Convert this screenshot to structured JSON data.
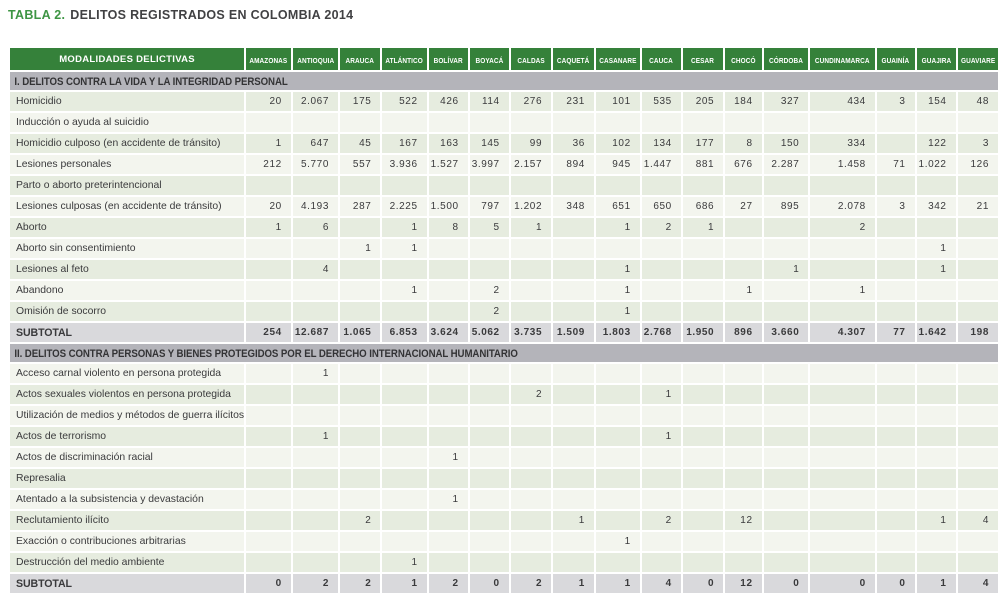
{
  "title": {
    "prefix": "TABLA 2.",
    "text": "DELITOS REGISTRADOS EN COLOMBIA 2014"
  },
  "colors": {
    "header_green": "#35813a",
    "title_green": "#3e9544",
    "section_bar_gray": "#b4b4ba",
    "row_stripe_green": "#e6ecdf",
    "row_stripe_light": "#f3f5ee",
    "subtotal_gray": "#d9d9dc",
    "text": "#3a3a3c"
  },
  "table": {
    "first_header": "MODALIDADES DELICTIVAS",
    "departments": [
      "AMAZONAS",
      "ANTIOQUIA",
      "ARAUCA",
      "ATLÁNTICO",
      "BOLÍVAR",
      "BOYACÁ",
      "CALDAS",
      "CAQUETÁ",
      "CASANARE",
      "CAUCA",
      "CESAR",
      "CHOCÓ",
      "CÓRDOBA",
      "CUNDINAMARCA",
      "GUAINÍA",
      "GUAJIRA",
      "GUAVIARE"
    ],
    "sections": [
      {
        "header": "I. DELITOS CONTRA LA VIDA Y LA INTEGRIDAD PERSONAL",
        "rows": [
          {
            "label": "Homicidio",
            "values": [
              "20",
              "2.067",
              "175",
              "522",
              "426",
              "114",
              "276",
              "231",
              "101",
              "535",
              "205",
              "184",
              "327",
              "434",
              "3",
              "154",
              "48"
            ]
          },
          {
            "label": "Inducción o ayuda al suicidio",
            "values": [
              "",
              "",
              "",
              "",
              "",
              "",
              "",
              "",
              "",
              "",
              "",
              "",
              "",
              "",
              "",
              "",
              ""
            ]
          },
          {
            "label": "Homicidio culposo (en accidente de tránsito)",
            "values": [
              "1",
              "647",
              "45",
              "167",
              "163",
              "145",
              "99",
              "36",
              "102",
              "134",
              "177",
              "8",
              "150",
              "334",
              "",
              "122",
              "3"
            ]
          },
          {
            "label": "Lesiones personales",
            "values": [
              "212",
              "5.770",
              "557",
              "3.936",
              "1.527",
              "3.997",
              "2.157",
              "894",
              "945",
              "1.447",
              "881",
              "676",
              "2.287",
              "1.458",
              "71",
              "1.022",
              "126"
            ]
          },
          {
            "label": "Parto o aborto preterintencional",
            "values": [
              "",
              "",
              "",
              "",
              "",
              "",
              "",
              "",
              "",
              "",
              "",
              "",
              "",
              "",
              "",
              "",
              ""
            ]
          },
          {
            "label": "Lesiones culposas (en accidente de tránsito)",
            "values": [
              "20",
              "4.193",
              "287",
              "2.225",
              "1.500",
              "797",
              "1.202",
              "348",
              "651",
              "650",
              "686",
              "27",
              "895",
              "2.078",
              "3",
              "342",
              "21"
            ]
          },
          {
            "label": "Aborto",
            "values": [
              "1",
              "6",
              "",
              "1",
              "8",
              "5",
              "1",
              "",
              "1",
              "2",
              "1",
              "",
              "",
              "2",
              "",
              "",
              ""
            ]
          },
          {
            "label": "Aborto sin consentimiento",
            "values": [
              "",
              "",
              "1",
              "1",
              "",
              "",
              "",
              "",
              "",
              "",
              "",
              "",
              "",
              "",
              "",
              "1",
              ""
            ]
          },
          {
            "label": "Lesiones al feto",
            "values": [
              "",
              "4",
              "",
              "",
              "",
              "",
              "",
              "",
              "1",
              "",
              "",
              "",
              "1",
              "",
              "",
              "1",
              ""
            ]
          },
          {
            "label": "Abandono",
            "values": [
              "",
              "",
              "",
              "1",
              "",
              "2",
              "",
              "",
              "1",
              "",
              "",
              "1",
              "",
              "1",
              "",
              "",
              ""
            ]
          },
          {
            "label": "Omisión de socorro",
            "values": [
              "",
              "",
              "",
              "",
              "",
              "2",
              "",
              "",
              "1",
              "",
              "",
              "",
              "",
              "",
              "",
              "",
              ""
            ]
          }
        ],
        "subtotal": {
          "label": "SUBTOTAL",
          "values": [
            "254",
            "12.687",
            "1.065",
            "6.853",
            "3.624",
            "5.062",
            "3.735",
            "1.509",
            "1.803",
            "2.768",
            "1.950",
            "896",
            "3.660",
            "4.307",
            "77",
            "1.642",
            "198"
          ]
        }
      },
      {
        "header": "II. DELITOS CONTRA PERSONAS Y BIENES PROTEGIDOS POR EL DERECHO INTERNACIONAL HUMANITARIO",
        "rows": [
          {
            "label": "Acceso carnal violento en persona protegida",
            "values": [
              "",
              "1",
              "",
              "",
              "",
              "",
              "",
              "",
              "",
              "",
              "",
              "",
              "",
              "",
              "",
              "",
              ""
            ]
          },
          {
            "label": "Actos sexuales violentos en persona protegida",
            "values": [
              "",
              "",
              "",
              "",
              "",
              "",
              "2",
              "",
              "",
              "1",
              "",
              "",
              "",
              "",
              "",
              "",
              ""
            ]
          },
          {
            "label": "Utilización de medios y métodos de guerra ilícitos",
            "values": [
              "",
              "",
              "",
              "",
              "",
              "",
              "",
              "",
              "",
              "",
              "",
              "",
              "",
              "",
              "",
              "",
              ""
            ]
          },
          {
            "label": "Actos de terrorismo",
            "values": [
              "",
              "1",
              "",
              "",
              "",
              "",
              "",
              "",
              "",
              "1",
              "",
              "",
              "",
              "",
              "",
              "",
              ""
            ]
          },
          {
            "label": "Actos de discriminación racial",
            "values": [
              "",
              "",
              "",
              "",
              "1",
              "",
              "",
              "",
              "",
              "",
              "",
              "",
              "",
              "",
              "",
              "",
              ""
            ]
          },
          {
            "label": "Represalia",
            "values": [
              "",
              "",
              "",
              "",
              "",
              "",
              "",
              "",
              "",
              "",
              "",
              "",
              "",
              "",
              "",
              "",
              ""
            ]
          },
          {
            "label": "Atentado a la subsistencia y devastación",
            "values": [
              "",
              "",
              "",
              "",
              "1",
              "",
              "",
              "",
              "",
              "",
              "",
              "",
              "",
              "",
              "",
              "",
              ""
            ]
          },
          {
            "label": "Reclutamiento ilícito",
            "values": [
              "",
              "",
              "2",
              "",
              "",
              "",
              "",
              "1",
              "",
              "2",
              "",
              "12",
              "",
              "",
              "",
              "1",
              "4"
            ]
          },
          {
            "label": "Exacción o contribuciones arbitrarias",
            "values": [
              "",
              "",
              "",
              "",
              "",
              "",
              "",
              "",
              "1",
              "",
              "",
              "",
              "",
              "",
              "",
              "",
              ""
            ]
          },
          {
            "label": "Destrucción del medio ambiente",
            "values": [
              "",
              "",
              "",
              "1",
              "",
              "",
              "",
              "",
              "",
              "",
              "",
              "",
              "",
              "",
              "",
              "",
              ""
            ]
          }
        ],
        "subtotal": {
          "label": "SUBTOTAL",
          "values": [
            "0",
            "2",
            "2",
            "1",
            "2",
            "0",
            "2",
            "1",
            "1",
            "4",
            "0",
            "12",
            "0",
            "0",
            "0",
            "1",
            "4"
          ]
        }
      }
    ]
  }
}
